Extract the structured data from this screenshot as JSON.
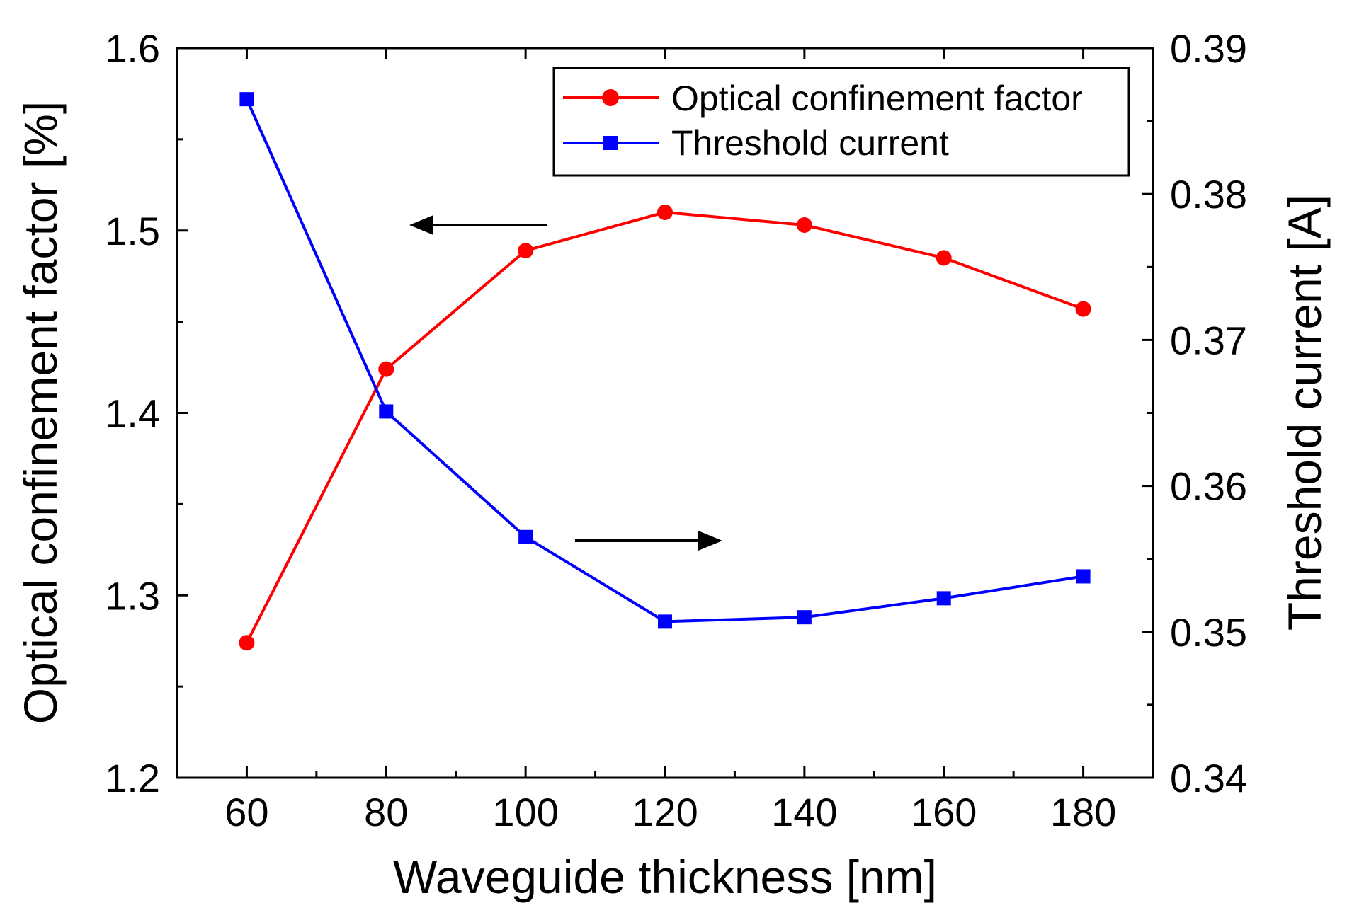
{
  "chart_data": {
    "type": "line",
    "x": [
      60,
      80,
      100,
      120,
      140,
      160,
      180
    ],
    "xlabel": "Waveguide thickness [nm]",
    "xlim": [
      50,
      190
    ],
    "xticks": [
      "60",
      "80",
      "100",
      "120",
      "140",
      "160",
      "180"
    ],
    "ylabel": "Optical confinement factor [%]",
    "ylim": [
      1.2,
      1.6
    ],
    "yticks": [
      "1.2",
      "1.3",
      "1.4",
      "1.5",
      "1.6"
    ],
    "y2label": "Threshold current [A]",
    "y2lim": [
      0.34,
      0.39
    ],
    "y2ticks": [
      "0.34",
      "0.35",
      "0.36",
      "0.37",
      "0.38",
      "0.39"
    ],
    "series": [
      {
        "name": "Optical confinement factor",
        "axis": "left",
        "color": "#ff0000",
        "marker": "circle",
        "values": [
          1.274,
          1.424,
          1.489,
          1.51,
          1.503,
          1.485,
          1.457
        ]
      },
      {
        "name": "Threshold current",
        "axis": "right",
        "color": "#0000ff",
        "marker": "square",
        "values": [
          0.3865,
          0.3651,
          0.3565,
          0.3507,
          0.351,
          0.3523,
          0.3538
        ]
      }
    ],
    "annotations": [
      {
        "type": "arrow",
        "direction": "left",
        "points_to": "left axis"
      },
      {
        "type": "arrow",
        "direction": "right",
        "points_to": "right axis"
      }
    ],
    "legend": "top-right",
    "grid": false
  }
}
